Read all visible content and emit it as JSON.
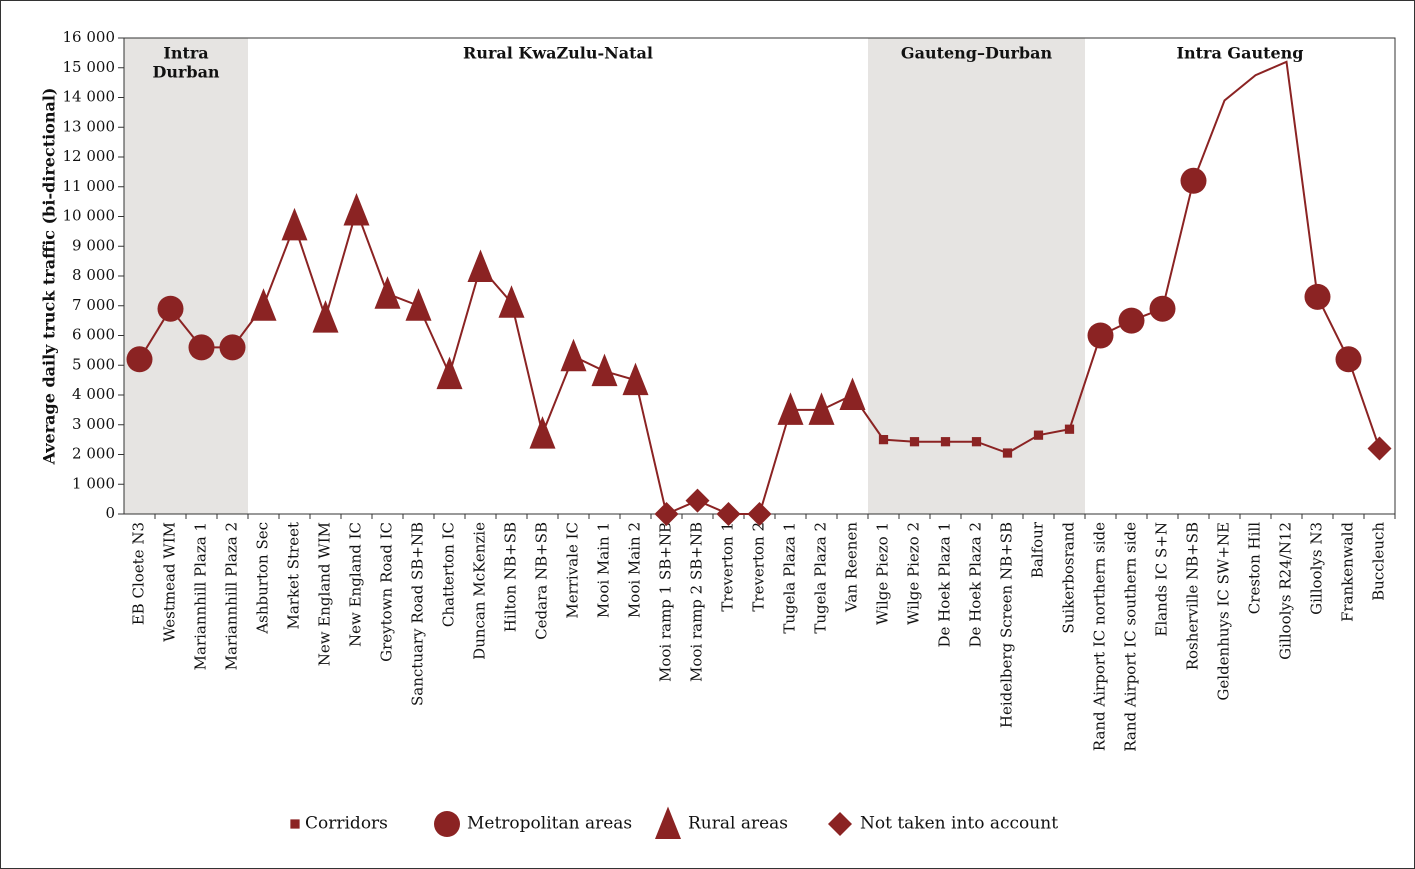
{
  "chart_data": {
    "type": "line",
    "y_label": "Average daily truck traffic (bi-directional)",
    "color": "#8b2323",
    "categories": [
      "EB Cloete N3",
      "Westmead WIM",
      "Mariannhill Plaza 1",
      "Mariannhill Plaza 2",
      "Ashburton Sec",
      "Market Street",
      "New England WIM",
      "New England IC",
      "Greytown Road IC",
      "Sanctuary Road SB+NB",
      "Chatterton IC",
      "Duncan McKenzie",
      "Hilton NB+SB",
      "Cedara NB+SB",
      "Merrivale IC",
      "Mooi Main 1",
      "Mooi Main 2",
      "Mooi ramp 1 SB+NB",
      "Mooi ramp 2 SB+NB",
      "Treverton 1",
      "Treverton 2",
      "Tugela Plaza 1",
      "Tugela Plaza 2",
      "Van Reenen",
      "Wilge Piezo 1",
      "Wilge Piezo 2",
      "De Hoek Plaza 1",
      "De Hoek Plaza 2",
      "Heidelberg Screen NB+SB",
      "Balfour",
      "Suikerbosrand",
      "Rand Airport IC northern side",
      "Rand Airport IC southern side",
      "Elands IC S+N",
      "Rosherville NB+SB",
      "Geldenhuys IC SW+NE",
      "Creston Hill",
      "Gilloolys R24/N12",
      "Gilloolys N3",
      "Frankenwald",
      "Buccleuch"
    ],
    "values": [
      5200,
      6900,
      5600,
      5600,
      7000,
      9700,
      6600,
      10200,
      7400,
      7000,
      4700,
      8300,
      7100,
      2700,
      5300,
      4800,
      4500,
      0,
      450,
      0,
      0,
      3500,
      3500,
      4000,
      2500,
      2430,
      2430,
      2430,
      2050,
      2650,
      2850,
      6000,
      6500,
      6900,
      11200,
      13900,
      14750,
      15200,
      7300,
      5200,
      2200
    ],
    "markers": [
      "circle",
      "circle",
      "circle",
      "circle",
      "triangle",
      "triangle",
      "triangle",
      "triangle",
      "triangle",
      "triangle",
      "triangle",
      "triangle",
      "triangle",
      "triangle",
      "triangle",
      "triangle",
      "triangle",
      "diamond",
      "diamond",
      "diamond",
      "diamond",
      "triangle",
      "triangle",
      "triangle",
      "square",
      "square",
      "square",
      "square",
      "square",
      "square",
      "square",
      "circle",
      "circle",
      "circle",
      "circle",
      null,
      null,
      null,
      "circle",
      "circle",
      "diamond"
    ],
    "series": [
      {
        "name": "Corridors",
        "marker": "square"
      },
      {
        "name": "Metropolitan areas",
        "marker": "circle"
      },
      {
        "name": "Rural areas",
        "marker": "triangle"
      },
      {
        "name": "Not taken into account",
        "marker": "diamond"
      }
    ],
    "bands": [
      {
        "label": [
          "Intra",
          "Durban"
        ],
        "start": "EB Cloete N3",
        "end": "Mariannhill Plaza 2",
        "shaded": true
      },
      {
        "label": [
          "Rural KwaZulu-Natal"
        ],
        "start": "Ashburton Sec",
        "end": "Van Reenen",
        "shaded": false
      },
      {
        "label": [
          "Gauteng–Durban"
        ],
        "start": "Wilge Piezo 1",
        "end": "Suikerbosrand",
        "shaded": true
      },
      {
        "label": [
          "Intra Gauteng"
        ],
        "start": "Rand Airport IC northern side",
        "end": "Buccleuch",
        "shaded": false
      }
    ],
    "ylim": [
      0,
      16000
    ],
    "yticks": [
      0,
      {
        "value": 1000,
        "label": "1 000"
      },
      {
        "value": 2000,
        "label": "2 000"
      },
      {
        "value": 3000,
        "label": "3 000"
      },
      {
        "value": 4000,
        "label": "4 000"
      },
      {
        "value": 5000,
        "label": "5 000"
      },
      {
        "value": 6000,
        "label": "6 000"
      },
      {
        "value": 7000,
        "label": "7 000"
      },
      {
        "value": 8000,
        "label": "8 000"
      },
      {
        "value": 9000,
        "label": "9 000"
      },
      {
        "value": 10000,
        "label": "10 000"
      },
      {
        "value": 11000,
        "label": "11 000"
      },
      {
        "value": 12000,
        "label": "12 000"
      },
      {
        "value": 13000,
        "label": "13 000"
      },
      {
        "value": 14000,
        "label": "14 000"
      },
      {
        "value": 15000,
        "label": "15 000"
      },
      {
        "value": 16000,
        "label": "16 000"
      }
    ],
    "legend": "bottom"
  }
}
